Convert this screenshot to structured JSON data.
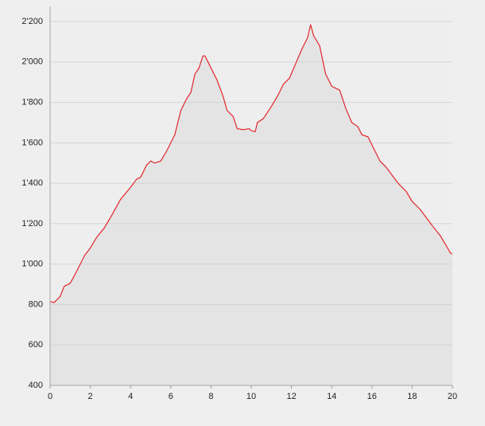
{
  "chart_data": {
    "type": "area",
    "x": [
      0,
      0.2,
      0.5,
      0.7,
      1.0,
      1.3,
      1.7,
      2.0,
      2.3,
      2.7,
      3.0,
      3.5,
      4.0,
      4.3,
      4.5,
      4.8,
      5.0,
      5.2,
      5.5,
      5.8,
      6.2,
      6.5,
      6.8,
      7.0,
      7.2,
      7.4,
      7.6,
      7.7,
      8.0,
      8.3,
      8.6,
      8.8,
      9.1,
      9.3,
      9.6,
      9.9,
      10.0,
      10.2,
      10.3,
      10.6,
      11.0,
      11.3,
      11.6,
      11.9,
      12.2,
      12.5,
      12.8,
      12.95,
      13.1,
      13.4,
      13.7,
      14.0,
      14.4,
      14.7,
      15.0,
      15.3,
      15.5,
      15.8,
      16.1,
      16.4,
      16.7,
      17.0,
      17.3,
      17.7,
      18.0,
      18.4,
      18.7,
      19.0,
      19.4,
      19.7,
      19.9,
      20.0
    ],
    "values": [
      815,
      810,
      840,
      890,
      905,
      960,
      1040,
      1080,
      1130,
      1180,
      1230,
      1320,
      1380,
      1420,
      1430,
      1490,
      1510,
      1500,
      1510,
      1560,
      1640,
      1760,
      1820,
      1850,
      1940,
      1970,
      2030,
      2030,
      1970,
      1910,
      1830,
      1760,
      1730,
      1670,
      1665,
      1670,
      1660,
      1655,
      1700,
      1720,
      1780,
      1830,
      1890,
      1920,
      1990,
      2060,
      2120,
      2185,
      2130,
      2080,
      1940,
      1880,
      1860,
      1770,
      1700,
      1680,
      1640,
      1630,
      1570,
      1510,
      1480,
      1440,
      1400,
      1360,
      1310,
      1270,
      1230,
      1190,
      1140,
      1090,
      1055,
      1050
    ],
    "color": "#e3262b",
    "fill_color": "#e4e4e4",
    "xlim": [
      0,
      20
    ],
    "xticks": [
      0,
      2,
      4,
      6,
      8,
      10,
      12,
      14,
      16,
      18,
      20
    ],
    "ylim": [
      400,
      2275
    ],
    "yticks": [
      400,
      600,
      800,
      {
        "value": 1000,
        "label": "1'000"
      },
      {
        "value": 1200,
        "label": "1'200"
      },
      {
        "value": 1400,
        "label": "1'400"
      },
      {
        "value": 1600,
        "label": "1'600"
      },
      {
        "value": 1800,
        "label": "1'800"
      },
      {
        "value": 2000,
        "label": "2'000"
      },
      {
        "value": 2200,
        "label": "2'200"
      }
    ],
    "grid": true
  }
}
